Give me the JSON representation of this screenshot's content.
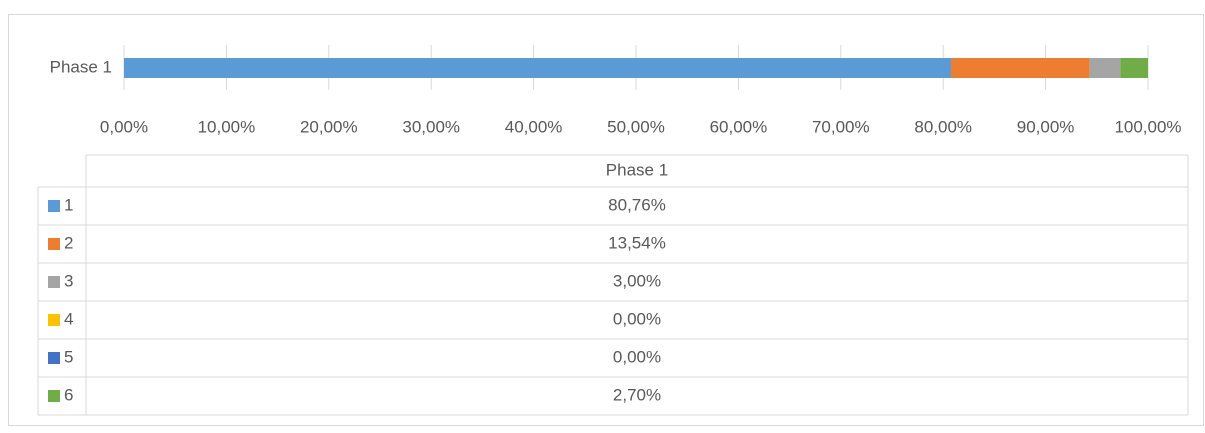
{
  "chart_data": {
    "type": "bar",
    "orientation": "horizontal",
    "stacked": "percent",
    "categories": [
      "Phase 1"
    ],
    "series": [
      {
        "name": "1",
        "color": "#5b9bd5",
        "values": [
          80.76
        ],
        "value_labels": [
          "80,76%"
        ]
      },
      {
        "name": "2",
        "color": "#ed7d31",
        "values": [
          13.54
        ],
        "value_labels": [
          "13,54%"
        ]
      },
      {
        "name": "3",
        "color": "#a5a5a5",
        "values": [
          3.0
        ],
        "value_labels": [
          "3,00%"
        ]
      },
      {
        "name": "4",
        "color": "#ffc000",
        "values": [
          0.0
        ],
        "value_labels": [
          "0,00%"
        ]
      },
      {
        "name": "5",
        "color": "#4472c4",
        "values": [
          0.0
        ],
        "value_labels": [
          "0,00%"
        ]
      },
      {
        "name": "6",
        "color": "#70ad47",
        "values": [
          2.7
        ],
        "value_labels": [
          "2,70%"
        ]
      }
    ],
    "xlim": [
      0,
      100
    ],
    "xticks": [
      {
        "value": 0,
        "label": "0,00%"
      },
      {
        "value": 10,
        "label": "10,00%"
      },
      {
        "value": 20,
        "label": "20,00%"
      },
      {
        "value": 30,
        "label": "30,00%"
      },
      {
        "value": 40,
        "label": "40,00%"
      },
      {
        "value": 50,
        "label": "50,00%"
      },
      {
        "value": 60,
        "label": "60,00%"
      },
      {
        "value": 70,
        "label": "70,00%"
      },
      {
        "value": 80,
        "label": "80,00%"
      },
      {
        "value": 90,
        "label": "90,00%"
      },
      {
        "value": 100,
        "label": "100,00%"
      }
    ],
    "grid": true,
    "data_table": true
  }
}
